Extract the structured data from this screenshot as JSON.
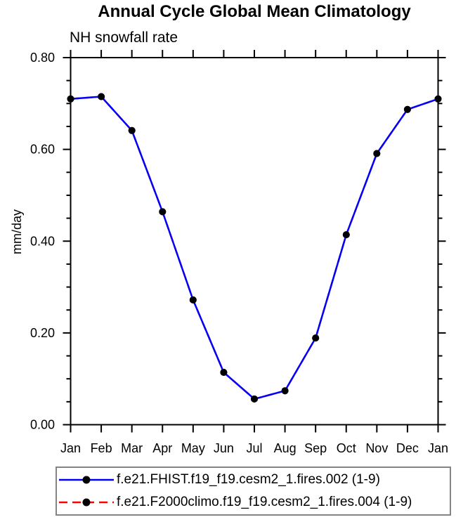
{
  "chart": {
    "title": "Annual Cycle Global Mean Climatology",
    "subtitle": "NH snowfall rate",
    "ylabel": "mm/day"
  },
  "chart_data": {
    "type": "line",
    "title": "Annual Cycle Global Mean Climatology",
    "subtitle": "NH snowfall rate",
    "xlabel": "",
    "ylabel": "mm/day",
    "categories": [
      "Jan",
      "Feb",
      "Mar",
      "Apr",
      "May",
      "Jun",
      "Jul",
      "Aug",
      "Sep",
      "Oct",
      "Nov",
      "Dec",
      "Jan"
    ],
    "ylim": [
      0.0,
      0.8
    ],
    "ytick_major_step": 0.2,
    "ytick_minor_step": 0.05,
    "ytick_labels": [
      "0.00",
      "0.20",
      "0.40",
      "0.60",
      "0.80"
    ],
    "grid": false,
    "legend_position": "bottom",
    "series": [
      {
        "name": "f.e21.FHIST.f19_f19.cesm2_1.fires.002 (1-9)",
        "color": "#0000ff",
        "style": "solid",
        "marker": "filled-circle",
        "marker_color": "#000000",
        "values": [
          0.71,
          0.715,
          0.641,
          0.464,
          0.272,
          0.114,
          0.056,
          0.074,
          0.189,
          0.414,
          0.591,
          0.687,
          0.71
        ]
      },
      {
        "name": "f.e21.F2000climo.f19_f19.cesm2_1.fires.004 (1-9)",
        "color": "#ff0000",
        "style": "dashed",
        "marker": "filled-circle",
        "marker_color": "#000000",
        "hidden_behind_series_0": true,
        "values": [
          0.71,
          0.715,
          0.641,
          0.464,
          0.272,
          0.114,
          0.056,
          0.074,
          0.189,
          0.414,
          0.591,
          0.687,
          0.71
        ]
      }
    ]
  },
  "colors": {
    "axis": "#000000",
    "background": "#ffffff",
    "legend_border": "#848484",
    "series_1": "#0000ff",
    "series_2": "#ff0000",
    "marker": "#000000"
  }
}
